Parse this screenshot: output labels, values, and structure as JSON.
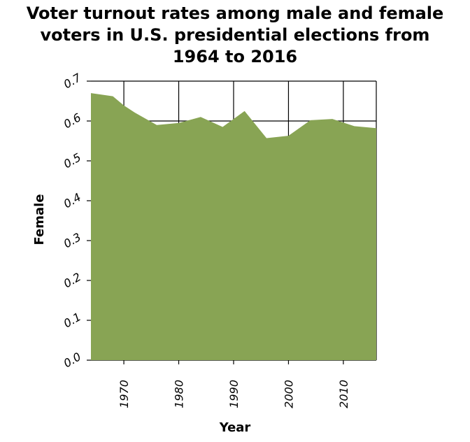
{
  "chart_data": {
    "type": "area",
    "title_lines": [
      "Voter turnout rates among male and female",
      "voters in U.S. presidential elections from",
      "1964 to 2016"
    ],
    "xlabel": "Year",
    "ylabel": "Female",
    "xlim": [
      1964,
      2016
    ],
    "ylim": [
      0.0,
      0.7
    ],
    "x_ticks": [
      1970,
      1980,
      1990,
      2000,
      2010
    ],
    "y_ticks": [
      "0.0",
      "0.1",
      "0.2",
      "0.3",
      "0.4",
      "0.5",
      "0.6",
      "0.7"
    ],
    "grid": true,
    "series": [
      {
        "x": [
          1964,
          1968,
          1970,
          1972,
          1976,
          1980,
          1984,
          1988,
          1992,
          1996,
          2000,
          2004,
          2008,
          2010,
          2012,
          2016
        ],
        "values": [
          0.67,
          0.662,
          0.639,
          0.621,
          0.59,
          0.595,
          0.61,
          0.585,
          0.625,
          0.557,
          0.563,
          0.602,
          0.605,
          0.596,
          0.587,
          0.582
        ]
      }
    ],
    "colors": {
      "fill": "#88a454",
      "grid": "#000000"
    }
  }
}
